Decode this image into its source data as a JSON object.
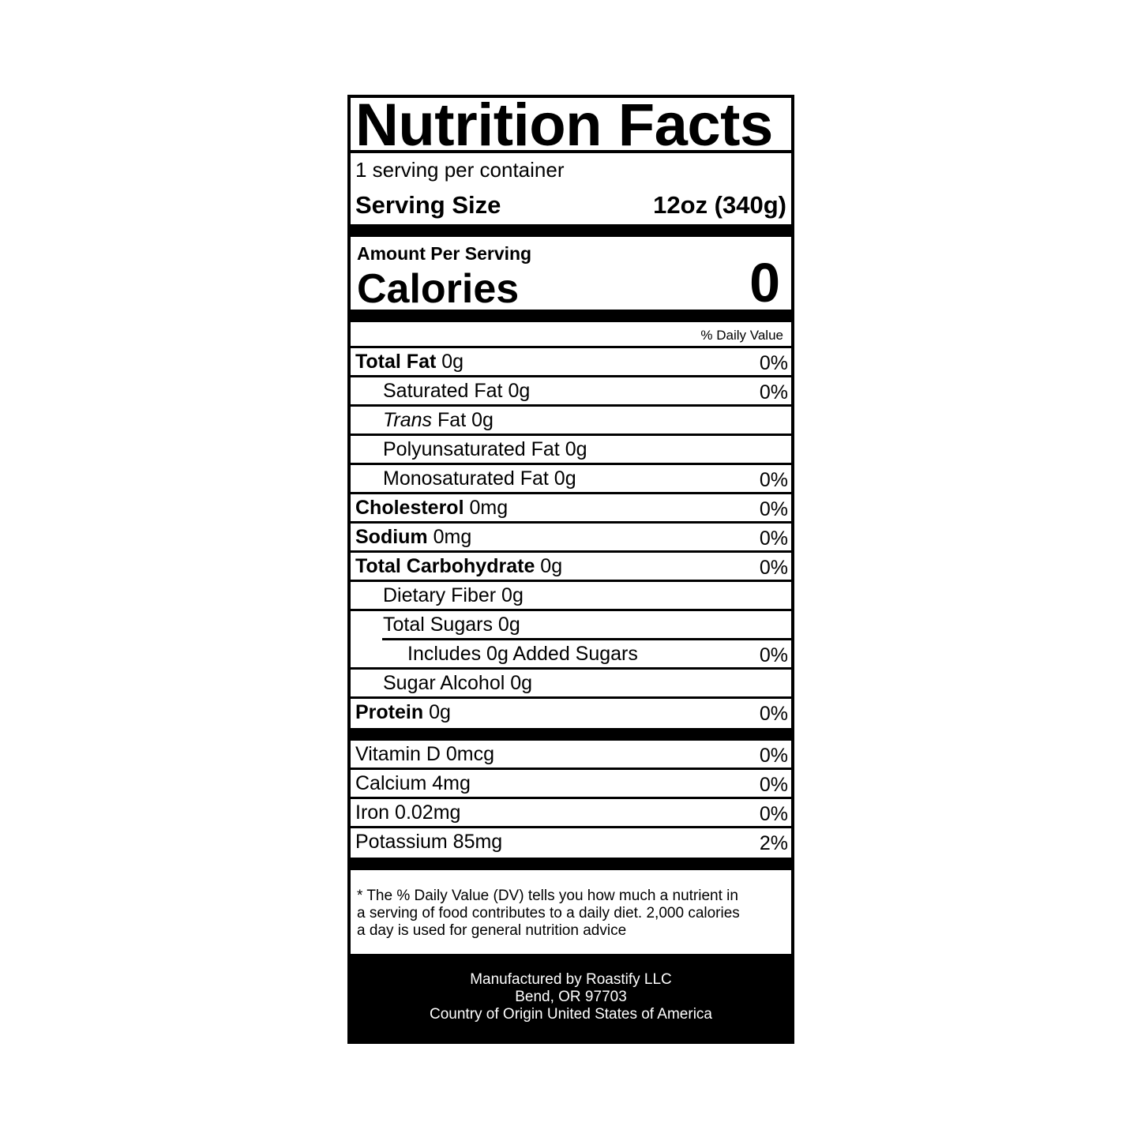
{
  "header": {
    "title": "Nutrition Facts",
    "servings": "1 serving per container",
    "serving_size_label": "Serving Size",
    "serving_size_value": "12oz (340g)"
  },
  "calories": {
    "amount_label": "Amount Per Serving",
    "label": "Calories",
    "value": 0
  },
  "daily_value_header": "% Daily Value",
  "rows": [
    {
      "label": "Total Fat",
      "amount": "0g",
      "dv": "0%"
    },
    {
      "label": "Saturated Fat",
      "amount": "0g",
      "dv": "0%"
    },
    {
      "label": "Trans",
      "amount": "Fat 0g"
    },
    {
      "label": "Polyunsaturated Fat",
      "amount": "0g"
    },
    {
      "label": "Monosaturated Fat",
      "amount": "0g",
      "dv": "0%"
    },
    {
      "label": "Cholesterol",
      "amount": "0mg",
      "dv": "0%"
    },
    {
      "label": "Sodium",
      "amount": "0mg",
      "dv": "0%"
    },
    {
      "label": "Total Carbohydrate",
      "amount": "0g",
      "dv": "0%"
    },
    {
      "label": "Dietary Fiber",
      "amount": "0g"
    },
    {
      "label": "Total Sugars",
      "amount": "0g"
    },
    {
      "label": "Includes 0g Added Sugars",
      "dv": "0%"
    },
    {
      "label": "Sugar Alcohol",
      "amount": "0g"
    },
    {
      "label": "Protein",
      "amount": "0g",
      "dv": "0%"
    }
  ],
  "vitamins": [
    {
      "label": "Vitamin D",
      "amount": "0mcg",
      "dv": "0%"
    },
    {
      "label": "Calcium",
      "amount": "4mg",
      "dv": "0%"
    },
    {
      "label": "Iron",
      "amount": "0.02mg",
      "dv": "0%"
    },
    {
      "label": "Potassium",
      "amount": "85mg",
      "dv": "2%"
    }
  ],
  "footnote": [
    "* The % Daily Value (DV) tells you how much a nutrient in",
    "a serving of food contributes to a daily diet. 2,000 calories",
    "a day is used for general nutrition advice"
  ],
  "footer": [
    "Manufactured by Roastify LLC",
    "Bend, OR 97703",
    "Country of Origin United States of America"
  ]
}
